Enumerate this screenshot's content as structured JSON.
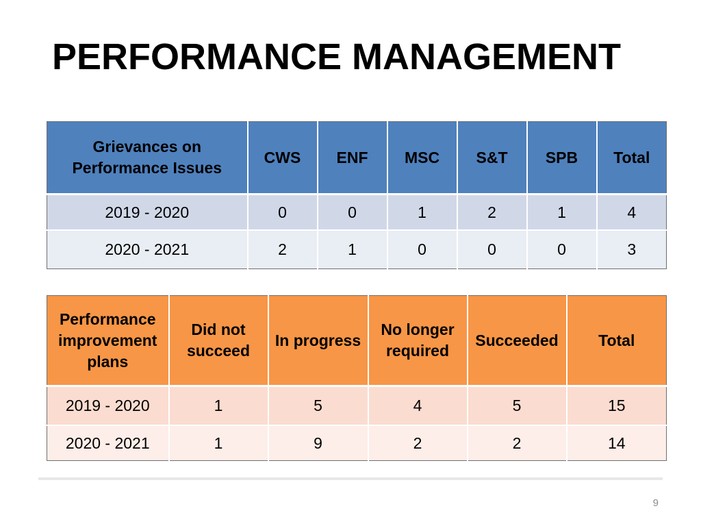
{
  "slide": {
    "title": "PERFORMANCE MANAGEMENT",
    "page_number": "9"
  },
  "grievances_table": {
    "headers": [
      "Grievances on Performance Issues",
      "CWS",
      "ENF",
      "MSC",
      "S&T",
      "SPB",
      "Total"
    ],
    "rows": [
      [
        "2019 - 2020",
        "0",
        "0",
        "1",
        "2",
        "1",
        "4"
      ],
      [
        "2020 - 2021",
        "2",
        "1",
        "0",
        "0",
        "0",
        "3"
      ]
    ],
    "colors": {
      "header": "#4f81bd",
      "band1": "#d0d8e8",
      "band2": "#e9edf4"
    }
  },
  "plans_table": {
    "headers": [
      "Performance improvement plans",
      "Did not succeed",
      "In progress",
      "No longer required",
      "Succeeded",
      "Total"
    ],
    "rows": [
      [
        "2019 - 2020",
        "1",
        "5",
        "4",
        "5",
        "15"
      ],
      [
        "2020 - 2021",
        "1",
        "9",
        "2",
        "2",
        "14"
      ]
    ],
    "colors": {
      "header": "#f79646",
      "band1": "#fbdcd0",
      "band2": "#fdeee9"
    }
  }
}
